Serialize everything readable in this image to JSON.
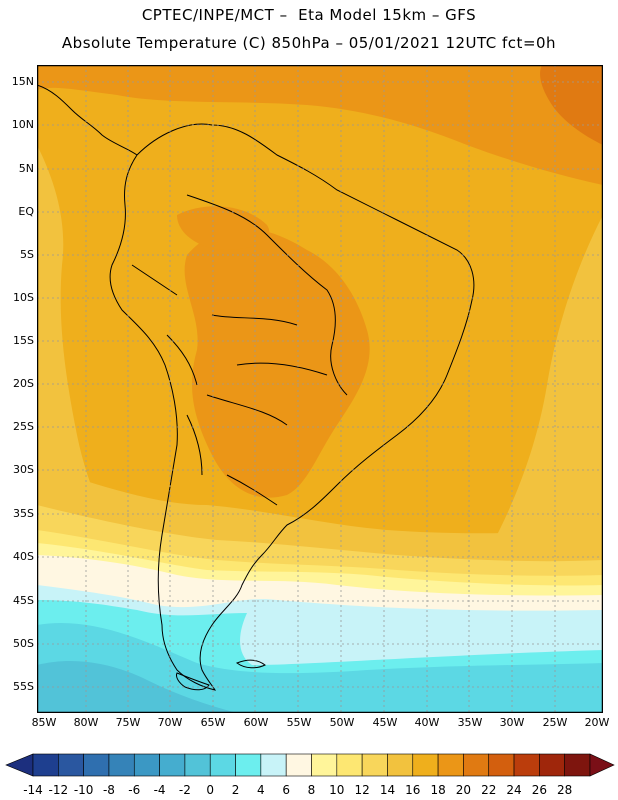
{
  "header": {
    "title_line1": "CPTEC/INPE/MCT –  Eta Model 15km – GFS",
    "title_line2": "Absolute Temperature (C) 850hPa – 05/01/2021 12UTC fct=0h"
  },
  "map": {
    "lat_labels": [
      "15N",
      "10N",
      "5N",
      "EQ",
      "5S",
      "10S",
      "15S",
      "20S",
      "25S",
      "30S",
      "35S",
      "40S",
      "45S",
      "50S",
      "55S"
    ],
    "lon_labels": [
      "85W",
      "80W",
      "75W",
      "70W",
      "65W",
      "60W",
      "55W",
      "50W",
      "45W",
      "40W",
      "35W",
      "30W",
      "25W",
      "20W"
    ],
    "gridlines": true
  },
  "colorbar": {
    "ticks": [
      "-14",
      "-12",
      "-10",
      "-8",
      "-6",
      "-4",
      "-2",
      "0",
      "2",
      "4",
      "6",
      "8",
      "10",
      "12",
      "14",
      "16",
      "18",
      "20",
      "22",
      "24",
      "26",
      "28"
    ],
    "colors": [
      "#1e3f8f",
      "#2a57a0",
      "#2f6faf",
      "#3583b8",
      "#3b98c4",
      "#45adcf",
      "#52c3d8",
      "#5cd8e4",
      "#6ceeee",
      "#c8f3f8",
      "#fff7e2",
      "#fff59a",
      "#fde772",
      "#f8d65b",
      "#f2c23e",
      "#efaf1c",
      "#eb9617",
      "#e07a12",
      "#d35f0e",
      "#bb3d0c",
      "#9f260b",
      "#7e150e"
    ],
    "under_color": "#1c2f7e",
    "over_color": "#7a0f17"
  },
  "field_colors": {
    "t8": "#fff7e2",
    "t10": "#fff59a",
    "t12": "#fde772",
    "t14": "#f8d65b",
    "t16": "#f2c23e",
    "t18": "#efaf1c",
    "t20": "#eb9617",
    "t22": "#e07a12",
    "t4": "#c8f3f8",
    "t2": "#6ceeee",
    "t0": "#5cd8e4",
    "tm2": "#52c3d8",
    "land_line": "#000000",
    "grid": "#999999"
  }
}
